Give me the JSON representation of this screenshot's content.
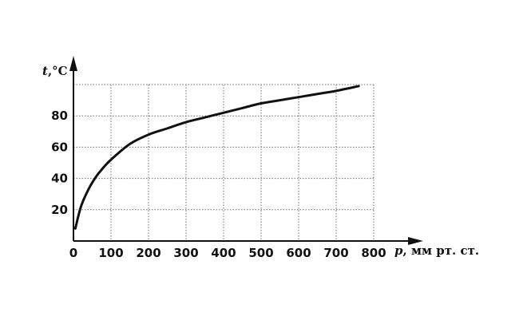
{
  "chart_data": {
    "type": "line",
    "xlabel": {
      "var": "p",
      "unit": ", мм рт. ст."
    },
    "ylabel": {
      "var": "t",
      "unit": ",°C"
    },
    "xlim": [
      0,
      800
    ],
    "ylim": [
      0,
      100
    ],
    "x_ticks": [
      0,
      100,
      200,
      300,
      400,
      500,
      600,
      700,
      800
    ],
    "y_ticks": [
      20,
      40,
      60,
      80
    ],
    "grid": true,
    "series": [
      {
        "x": [
          5,
          20,
          40,
          60,
          80,
          100,
          150,
          200,
          250,
          300,
          350,
          400,
          450,
          500,
          550,
          600,
          650,
          700,
          760
        ],
        "y": [
          8,
          22,
          33,
          41,
          47,
          52,
          62,
          68,
          72,
          76,
          79,
          82,
          85,
          88,
          90,
          92,
          94,
          96,
          99
        ]
      }
    ]
  }
}
